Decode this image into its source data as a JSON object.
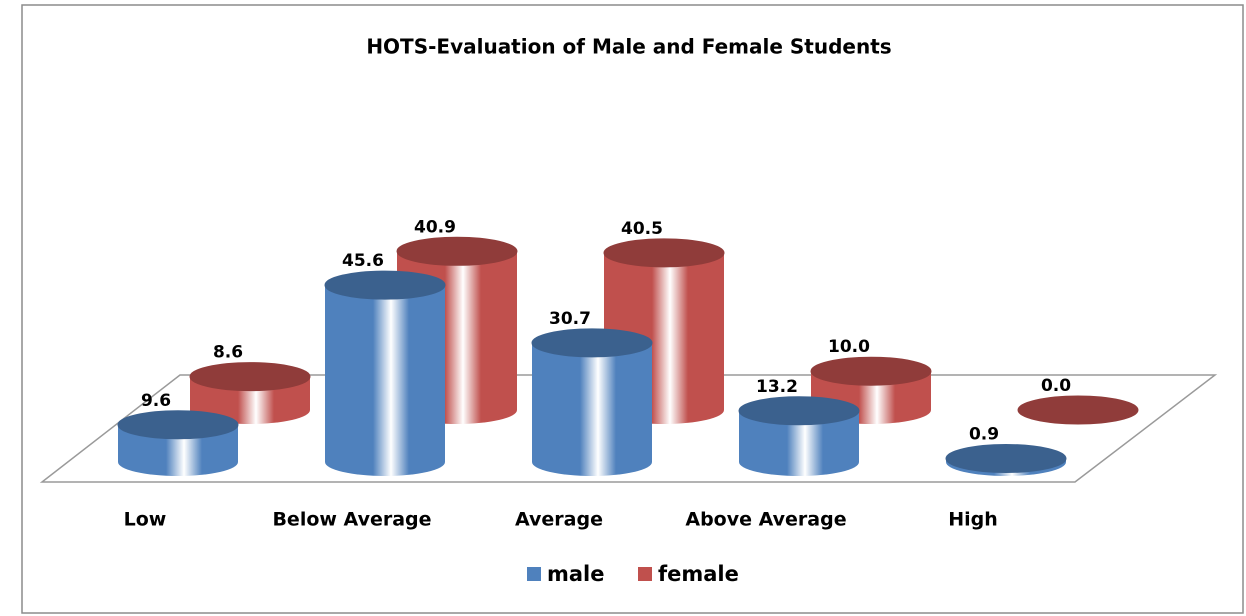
{
  "chart_data": {
    "type": "bar3d-cylinder",
    "title": "HOTS-Evaluation of Male and Female Students",
    "categories": [
      "Low",
      "Below Average",
      "Average",
      "Above Average",
      "High"
    ],
    "series": [
      {
        "name": "male",
        "color": "#4f81bd",
        "values": [
          9.6,
          45.6,
          30.7,
          13.2,
          0.9
        ],
        "value_labels": [
          "9.6",
          "45.6",
          "30.7",
          "13.2",
          "0.9"
        ]
      },
      {
        "name": "female",
        "color": "#c0504d",
        "values": [
          8.6,
          40.9,
          40.5,
          10.0,
          0.0
        ],
        "value_labels": [
          "8.6",
          "40.9",
          "40.5",
          "10.0",
          "0.0"
        ]
      }
    ],
    "legend": "bottom"
  }
}
